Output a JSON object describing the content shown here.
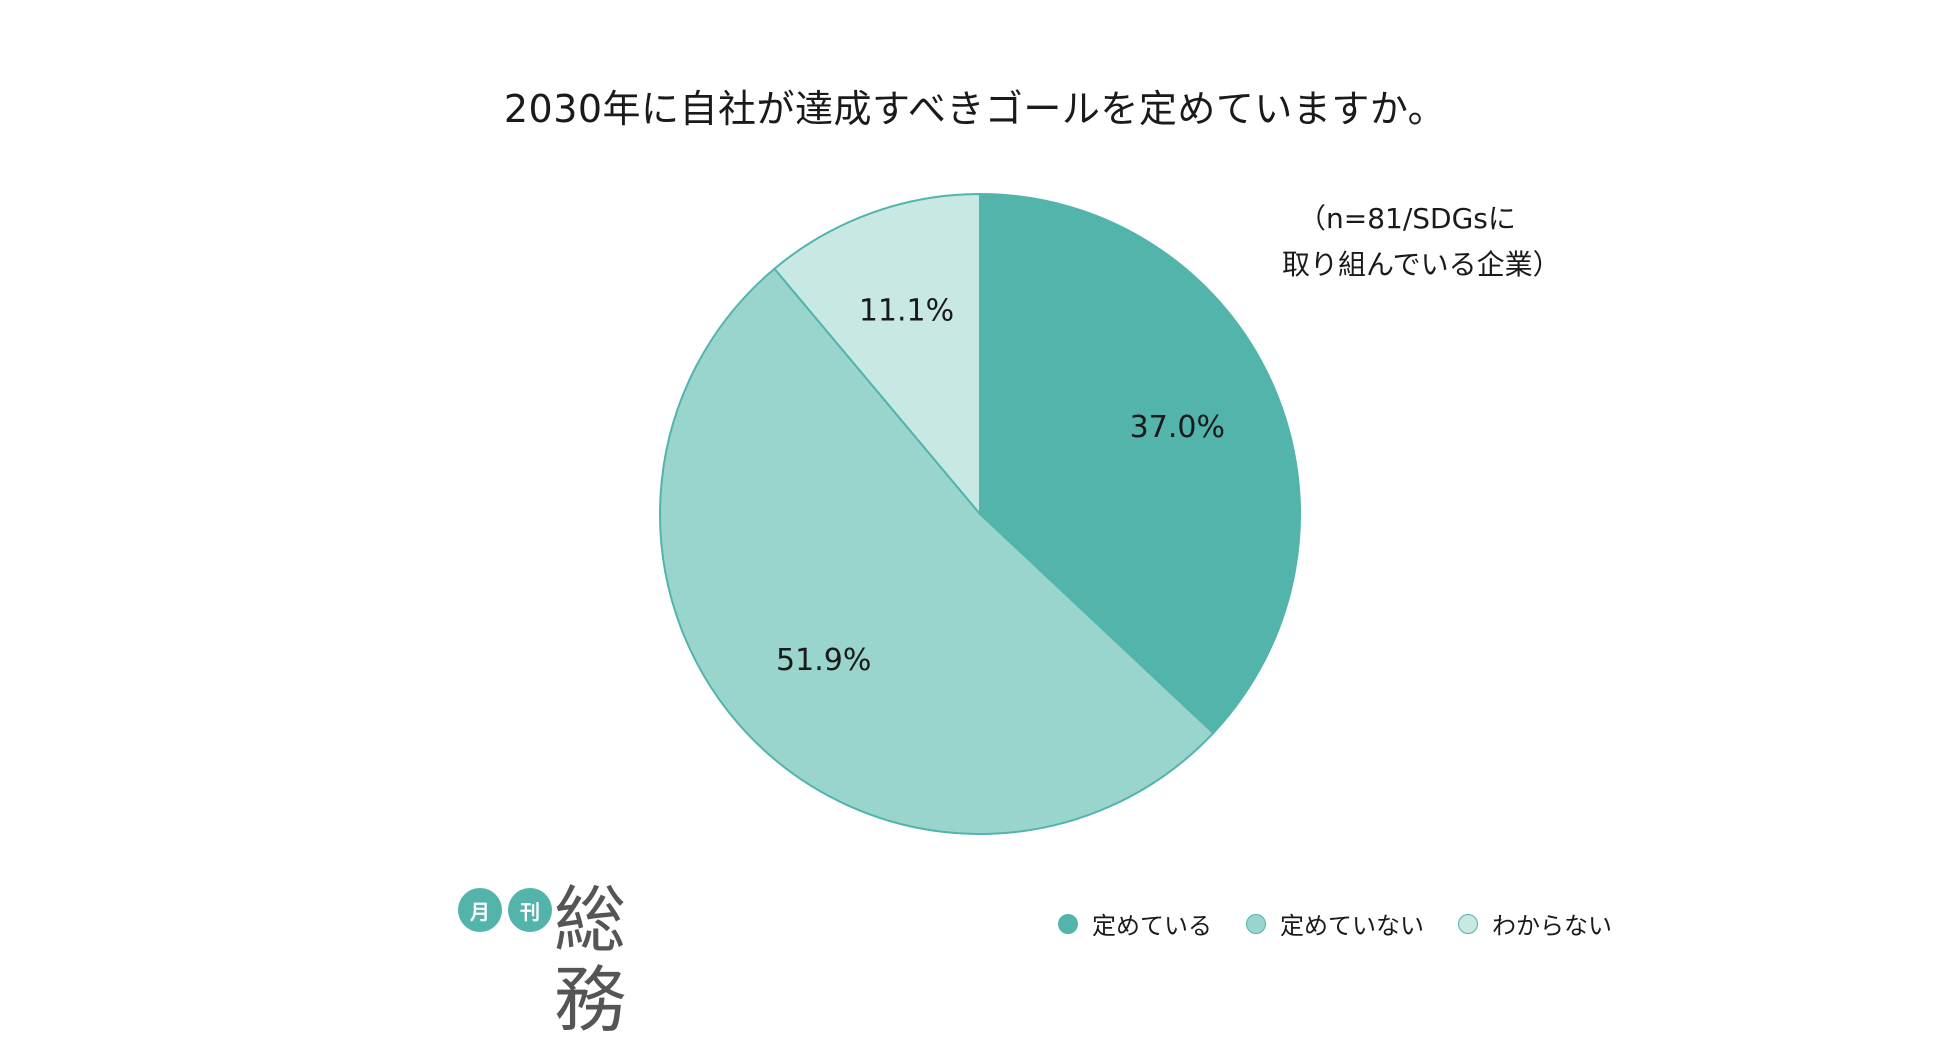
{
  "chart_data": {
    "type": "pie",
    "title": "2030年に自社が達成すべきゴールを定めていますか。",
    "note": [
      "（n=81/SDGsに",
      "取り組んでいる企業）"
    ],
    "slices": [
      {
        "name": "定めている",
        "value": 37.0,
        "label": "37.0%",
        "color": "#52b4aa"
      },
      {
        "name": "定めていない",
        "value": 51.9,
        "label": "51.9%",
        "color": "#99d5cd"
      },
      {
        "name": "わからない",
        "value": 11.1,
        "label": "11.1%",
        "color": "#c8e8e4"
      }
    ],
    "start_angle_deg": 0,
    "direction": "clockwise",
    "legend_position": "bottom-right",
    "stroke_color": "#52b4aa"
  },
  "logo": {
    "badge_1": "月",
    "badge_2": "刊",
    "name": "総務",
    "color": "#52b4aa"
  }
}
